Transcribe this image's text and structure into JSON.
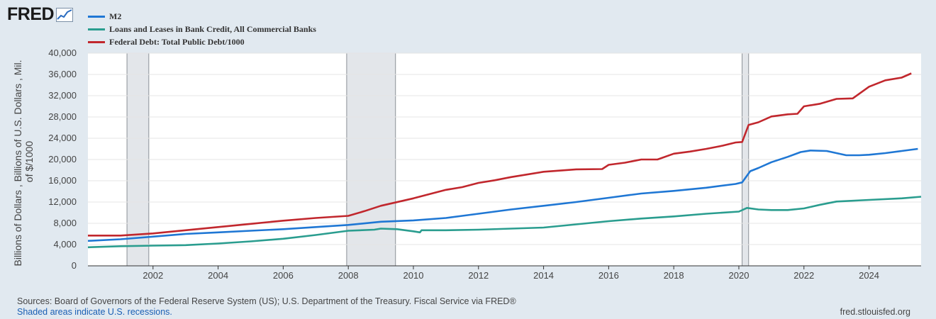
{
  "brand": {
    "name": "FRED",
    "icon": "line-chart-icon"
  },
  "chart_data": {
    "type": "line",
    "ylabel": "Billions of Dollars , Billions of U.S. Dollars , Mil. of $/1000",
    "ylabel_lines": [
      "Billions of Dollars , Billions of U.S. Dollars , Mil.",
      "of $/1000"
    ],
    "ylim": [
      0,
      40000
    ],
    "xlim": [
      2000,
      2025.6
    ],
    "y_ticks": [
      0,
      4000,
      8000,
      12000,
      16000,
      20000,
      24000,
      28000,
      32000,
      36000,
      40000
    ],
    "y_tick_labels": [
      "0",
      "4,000",
      "8,000",
      "12,000",
      "16,000",
      "20,000",
      "24,000",
      "28,000",
      "32,000",
      "36,000",
      "40,000"
    ],
    "x_ticks": [
      2002,
      2004,
      2006,
      2008,
      2010,
      2012,
      2014,
      2016,
      2018,
      2020,
      2022,
      2024
    ],
    "x_tick_labels": [
      "2002",
      "2004",
      "2006",
      "2008",
      "2010",
      "2012",
      "2014",
      "2016",
      "2018",
      "2020",
      "2022",
      "2024"
    ],
    "grid": true,
    "recessions": [
      [
        2001.2,
        2001.87
      ],
      [
        2007.95,
        2009.45
      ],
      [
        2020.1,
        2020.3
      ]
    ],
    "series": [
      {
        "name": "M2",
        "color": "#1f77d4",
        "points": [
          [
            2000,
            4700
          ],
          [
            2001,
            5000
          ],
          [
            2002,
            5500
          ],
          [
            2003,
            6000
          ],
          [
            2004,
            6300
          ],
          [
            2005,
            6600
          ],
          [
            2006,
            6900
          ],
          [
            2007,
            7300
          ],
          [
            2008,
            7700
          ],
          [
            2009,
            8300
          ],
          [
            2010,
            8550
          ],
          [
            2011,
            9000
          ],
          [
            2011.5,
            9400
          ],
          [
            2012,
            9800
          ],
          [
            2013,
            10600
          ],
          [
            2014,
            11300
          ],
          [
            2015,
            12000
          ],
          [
            2016,
            12800
          ],
          [
            2017,
            13600
          ],
          [
            2018,
            14100
          ],
          [
            2019,
            14700
          ],
          [
            2019.9,
            15400
          ],
          [
            2020.1,
            15700
          ],
          [
            2020.35,
            17800
          ],
          [
            2020.6,
            18400
          ],
          [
            2021,
            19500
          ],
          [
            2021.5,
            20500
          ],
          [
            2021.9,
            21400
          ],
          [
            2022.2,
            21700
          ],
          [
            2022.7,
            21600
          ],
          [
            2023,
            21200
          ],
          [
            2023.3,
            20800
          ],
          [
            2023.7,
            20800
          ],
          [
            2024,
            20900
          ],
          [
            2024.5,
            21200
          ],
          [
            2025,
            21600
          ],
          [
            2025.5,
            22000
          ]
        ]
      },
      {
        "name": "Loans and Leases in Bank Credit, All Commercial Banks",
        "color": "#2a9d8f",
        "points": [
          [
            2000,
            3500
          ],
          [
            2001,
            3700
          ],
          [
            2002,
            3800
          ],
          [
            2003,
            3900
          ],
          [
            2004,
            4200
          ],
          [
            2005,
            4600
          ],
          [
            2006,
            5100
          ],
          [
            2007,
            5800
          ],
          [
            2008,
            6600
          ],
          [
            2008.8,
            6800
          ],
          [
            2009,
            7000
          ],
          [
            2009.5,
            6900
          ],
          [
            2010,
            6500
          ],
          [
            2010.2,
            6300
          ],
          [
            2010.25,
            6700
          ],
          [
            2011,
            6700
          ],
          [
            2012,
            6800
          ],
          [
            2013,
            7000
          ],
          [
            2014,
            7200
          ],
          [
            2015,
            7800
          ],
          [
            2016,
            8400
          ],
          [
            2017,
            8900
          ],
          [
            2018,
            9300
          ],
          [
            2019,
            9800
          ],
          [
            2020,
            10200
          ],
          [
            2020.25,
            10900
          ],
          [
            2020.6,
            10600
          ],
          [
            2021,
            10500
          ],
          [
            2021.5,
            10500
          ],
          [
            2022,
            10800
          ],
          [
            2022.5,
            11500
          ],
          [
            2023,
            12100
          ],
          [
            2024,
            12400
          ],
          [
            2025,
            12700
          ],
          [
            2025.6,
            13000
          ]
        ]
      },
      {
        "name": "Federal Debt: Total Public Debt/1000",
        "color": "#c1272d",
        "points": [
          [
            2000,
            5700
          ],
          [
            2001,
            5700
          ],
          [
            2002,
            6100
          ],
          [
            2003,
            6700
          ],
          [
            2004,
            7300
          ],
          [
            2005,
            7900
          ],
          [
            2006,
            8500
          ],
          [
            2007,
            9000
          ],
          [
            2008,
            9400
          ],
          [
            2008.5,
            10300
          ],
          [
            2009,
            11300
          ],
          [
            2010,
            12700
          ],
          [
            2011,
            14300
          ],
          [
            2011.5,
            14800
          ],
          [
            2012,
            15600
          ],
          [
            2012.5,
            16100
          ],
          [
            2013,
            16700
          ],
          [
            2014,
            17700
          ],
          [
            2015,
            18150
          ],
          [
            2015.8,
            18200
          ],
          [
            2016,
            19000
          ],
          [
            2016.5,
            19400
          ],
          [
            2017,
            20000
          ],
          [
            2017.5,
            20000
          ],
          [
            2018,
            21100
          ],
          [
            2018.5,
            21500
          ],
          [
            2019,
            22000
          ],
          [
            2019.5,
            22600
          ],
          [
            2019.9,
            23200
          ],
          [
            2020.1,
            23300
          ],
          [
            2020.3,
            26500
          ],
          [
            2020.6,
            27000
          ],
          [
            2021,
            28100
          ],
          [
            2021.5,
            28500
          ],
          [
            2021.8,
            28600
          ],
          [
            2022,
            30000
          ],
          [
            2022.5,
            30500
          ],
          [
            2023,
            31400
          ],
          [
            2023.5,
            31500
          ],
          [
            2024,
            33700
          ],
          [
            2024.5,
            34900
          ],
          [
            2025,
            35400
          ],
          [
            2025.3,
            36200
          ]
        ]
      }
    ]
  },
  "footer": {
    "sources": "Sources: Board of Governors of the Federal Reserve System (US); U.S. Department of the Treasury. Fiscal Service via FRED®",
    "recession_note": "Shaded areas indicate U.S. recessions.",
    "site": "fred.stlouisfed.org"
  }
}
